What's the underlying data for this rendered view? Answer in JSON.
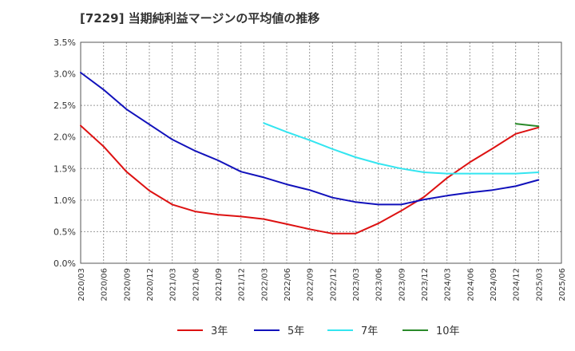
{
  "page_title": "[7229]  当期純利益マージンの平均値の推移",
  "chart_data": {
    "type": "line",
    "title": "[7229]  当期純利益マージンの平均値の推移",
    "xlabel": "",
    "ylabel": "",
    "ylim": [
      0,
      3.5
    ],
    "yticks": [
      "0.0%",
      "0.5%",
      "1.0%",
      "1.5%",
      "2.0%",
      "2.5%",
      "3.0%",
      "3.5%"
    ],
    "x": [
      "2020/03",
      "2020/06",
      "2020/09",
      "2020/12",
      "2021/03",
      "2021/06",
      "2021/09",
      "2021/12",
      "2022/03",
      "2022/06",
      "2022/09",
      "2022/12",
      "2023/03",
      "2023/06",
      "2023/09",
      "2023/12",
      "2024/03",
      "2024/06",
      "2024/09",
      "2024/12",
      "2025/03",
      "2025/06"
    ],
    "grid": true,
    "legend_position": "bottom",
    "series": [
      {
        "name": "3年",
        "color": "#dd1111",
        "values": [
          2.18,
          1.85,
          1.45,
          1.15,
          0.93,
          0.82,
          0.77,
          0.74,
          0.7,
          0.62,
          0.54,
          0.47,
          0.47,
          0.63,
          0.83,
          1.05,
          1.35,
          1.6,
          1.82,
          2.05,
          2.15,
          null
        ]
      },
      {
        "name": "5年",
        "color": "#1111bb",
        "values": [
          3.02,
          2.75,
          2.44,
          2.2,
          1.96,
          1.78,
          1.63,
          1.45,
          1.36,
          1.25,
          1.16,
          1.04,
          0.97,
          0.93,
          0.93,
          1.01,
          1.07,
          1.12,
          1.16,
          1.22,
          1.32,
          null
        ]
      },
      {
        "name": "7年",
        "color": "#33e5f0",
        "values": [
          null,
          null,
          null,
          null,
          null,
          null,
          null,
          null,
          2.22,
          2.08,
          1.95,
          1.81,
          1.68,
          1.58,
          1.5,
          1.44,
          1.42,
          1.42,
          1.42,
          1.42,
          1.44,
          null
        ]
      },
      {
        "name": "10年",
        "color": "#2a8a2a",
        "values": [
          null,
          null,
          null,
          null,
          null,
          null,
          null,
          null,
          null,
          null,
          null,
          null,
          null,
          null,
          null,
          null,
          null,
          null,
          null,
          2.21,
          2.17,
          null
        ]
      }
    ]
  }
}
